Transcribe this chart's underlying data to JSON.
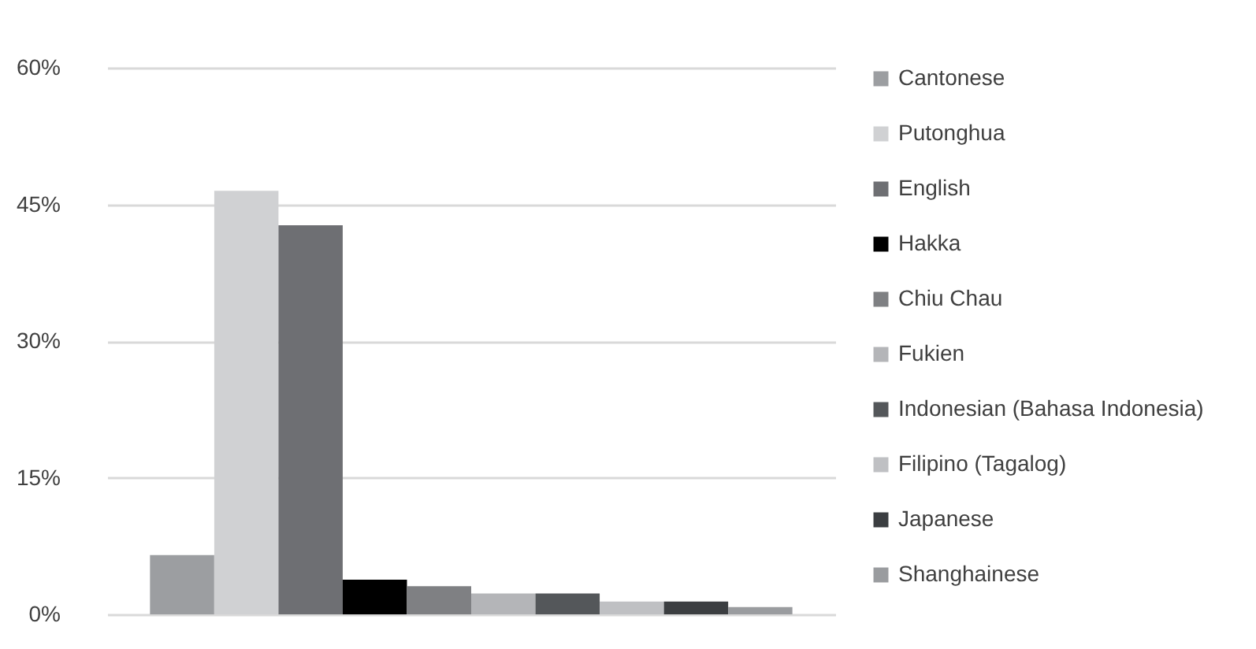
{
  "chart_data": {
    "type": "bar",
    "categories": [
      null
    ],
    "series": [
      {
        "name": "Cantonese",
        "color": "#9c9ea1",
        "values": [
          6.5
        ]
      },
      {
        "name": "Putonghua",
        "color": "#d0d1d3",
        "values": [
          46.5
        ]
      },
      {
        "name": "English",
        "color": "#6e6f73",
        "values": [
          42.7
        ]
      },
      {
        "name": "Hakka",
        "color": "#000000",
        "values": [
          3.8
        ]
      },
      {
        "name": "Chiu Chau",
        "color": "#7f8083",
        "values": [
          3.1
        ]
      },
      {
        "name": "Fukien",
        "color": "#b4b5b8",
        "values": [
          2.3
        ]
      },
      {
        "name": "Indonesian (Bahasa Indonesia)",
        "color": "#54575a",
        "values": [
          2.3
        ]
      },
      {
        "name": "Filipino (Tagalog)",
        "color": "#bfc0c3",
        "values": [
          1.4
        ]
      },
      {
        "name": "Japanese",
        "color": "#3b3e41",
        "values": [
          1.4
        ]
      },
      {
        "name": "Shanghainese",
        "color": "#9a9c9f",
        "values": [
          0.8
        ]
      }
    ],
    "ylim": [
      0,
      60
    ],
    "yticks": [
      {
        "value": 0,
        "label": "0%"
      },
      {
        "value": 15,
        "label": "15%"
      },
      {
        "value": 30,
        "label": "30%"
      },
      {
        "value": 45,
        "label": "45%"
      },
      {
        "value": 60,
        "label": "60%"
      }
    ],
    "grid": "y",
    "legend": "right"
  }
}
